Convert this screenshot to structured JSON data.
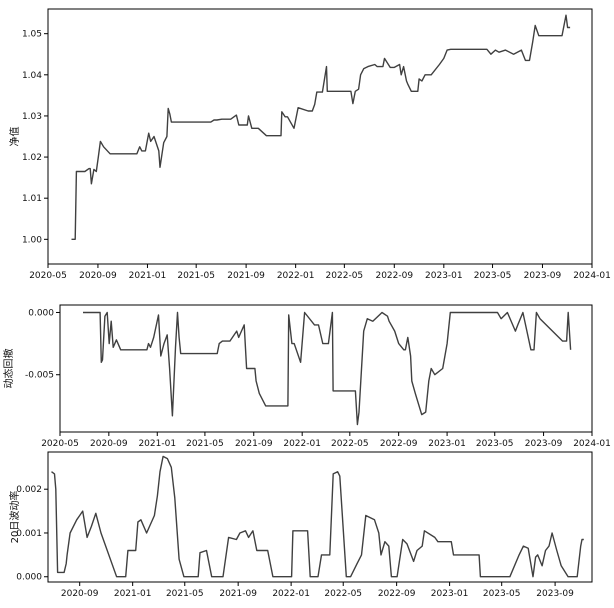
{
  "chart_data": [
    {
      "type": "line",
      "ylabel": "净值",
      "ylim": [
        0.994,
        1.056
      ],
      "yticks": [
        1.0,
        1.01,
        1.02,
        1.03,
        1.04,
        1.05
      ],
      "ytick_labels": [
        "1.00",
        "1.01",
        "1.02",
        "1.03",
        "1.04",
        "1.05"
      ],
      "xlim": [
        "2020-05-01",
        "2024-01-01"
      ],
      "xticks": [
        "2020-05-01",
        "2020-09-01",
        "2021-01-01",
        "2021-05-01",
        "2021-09-01",
        "2022-01-01",
        "2022-05-01",
        "2022-09-01",
        "2023-01-01",
        "2023-05-01",
        "2023-09-01",
        "2024-01-01"
      ],
      "xtick_labels": [
        "2020-05",
        "2020-09",
        "2021-01",
        "2021-05",
        "2021-09",
        "2022-01",
        "2022-05",
        "2022-09",
        "2023-01",
        "2023-05",
        "2023-09",
        "2024-01"
      ],
      "grid": false,
      "series": [
        {
          "color": "#404040",
          "x": [
            "2020-06-28",
            "2020-07-07",
            "2020-07-10",
            "2020-07-31",
            "2020-08-10",
            "2020-08-13",
            "2020-08-16",
            "2020-08-22",
            "2020-08-28",
            "2020-09-02",
            "2020-09-07",
            "2020-09-15",
            "2020-10-01",
            "2020-12-06",
            "2020-12-13",
            "2020-12-18",
            "2020-12-27",
            "2021-01-04",
            "2021-01-09",
            "2021-01-17",
            "2021-01-29",
            "2021-02-01",
            "2021-02-10",
            "2021-02-18",
            "2021-02-21",
            "2021-02-25",
            "2021-03-01",
            "2021-06-06",
            "2021-06-14",
            "2021-06-21",
            "2021-07-03",
            "2021-07-25",
            "2021-08-08",
            "2021-08-14",
            "2021-08-17",
            "2021-09-04",
            "2021-09-07",
            "2021-09-15",
            "2021-09-22",
            "2021-10-01",
            "2021-10-21",
            "2021-11-05",
            "2021-11-26",
            "2021-11-28",
            "2021-12-06",
            "2021-12-12",
            "2021-12-28",
            "2022-01-07",
            "2022-02-01",
            "2022-02-11",
            "2022-02-17",
            "2022-02-22",
            "2022-03-08",
            "2022-03-18",
            "2022-03-20",
            "2022-03-22",
            "2022-04-05",
            "2022-05-17",
            "2022-05-22",
            "2022-05-28",
            "2022-06-05",
            "2022-06-10",
            "2022-06-18",
            "2022-06-28",
            "2022-07-15",
            "2022-07-21",
            "2022-08-04",
            "2022-08-08",
            "2022-08-22",
            "2022-09-01",
            "2022-09-14",
            "2022-09-18",
            "2022-09-24",
            "2022-10-01",
            "2022-10-04",
            "2022-10-13",
            "2022-10-29",
            "2022-11-01",
            "2022-11-08",
            "2022-11-16",
            "2022-11-22",
            "2022-12-01",
            "2022-12-21",
            "2023-01-01",
            "2023-01-09",
            "2023-01-18",
            "2023-04-17",
            "2023-04-27",
            "2023-05-08",
            "2023-05-17",
            "2023-06-02",
            "2023-06-22",
            "2023-07-11",
            "2023-07-21",
            "2023-07-31",
            "2023-08-08",
            "2023-08-14",
            "2023-08-23",
            "2023-10-19",
            "2023-10-29",
            "2023-11-02",
            "2023-11-08"
          ],
          "y": [
            1.0,
            1.0,
            1.0165,
            1.0165,
            1.0172,
            1.0172,
            1.0135,
            1.017,
            1.0165,
            1.02,
            1.0238,
            1.0225,
            1.0208,
            1.0208,
            1.0225,
            1.0215,
            1.0215,
            1.0258,
            1.0238,
            1.025,
            1.0215,
            1.0175,
            1.0235,
            1.025,
            1.0318,
            1.0305,
            1.0285,
            1.0285,
            1.029,
            1.029,
            1.0292,
            1.0292,
            1.0302,
            1.0278,
            1.0278,
            1.0278,
            1.03,
            1.027,
            1.027,
            1.027,
            1.0252,
            1.0252,
            1.0252,
            1.031,
            1.0298,
            1.0298,
            1.027,
            1.032,
            1.0312,
            1.0312,
            1.0328,
            1.0358,
            1.0358,
            1.042,
            1.036,
            1.036,
            1.036,
            1.036,
            1.033,
            1.036,
            1.0365,
            1.04,
            1.0415,
            1.042,
            1.0425,
            1.042,
            1.042,
            1.044,
            1.0418,
            1.0418,
            1.0425,
            1.04,
            1.042,
            1.0385,
            1.0378,
            1.036,
            1.036,
            1.039,
            1.0385,
            1.04,
            1.04,
            1.04,
            1.0425,
            1.044,
            1.046,
            1.0462,
            1.0462,
            1.045,
            1.046,
            1.0455,
            1.046,
            1.045,
            1.046,
            1.0435,
            1.0435,
            1.048,
            1.052,
            1.0495,
            1.0495,
            1.0545,
            1.0515,
            1.0515
          ]
        }
      ]
    },
    {
      "type": "line",
      "ylabel": "动态回撤",
      "ylim": [
        -0.0096,
        0.0006
      ],
      "yticks": [
        0.0,
        -0.005
      ],
      "ytick_labels": [
        "0.000",
        "-0.005"
      ],
      "xlim": [
        "2020-05-01",
        "2024-01-01"
      ],
      "xticks": [
        "2020-05-01",
        "2020-09-01",
        "2021-01-01",
        "2021-05-01",
        "2021-09-01",
        "2022-01-01",
        "2022-05-01",
        "2022-09-01",
        "2023-01-01",
        "2023-05-01",
        "2023-09-01",
        "2024-01-01"
      ],
      "xtick_labels": [
        "2020-05",
        "2020-09",
        "2021-01",
        "2021-05",
        "2021-09",
        "2022-01",
        "2022-05",
        "2022-09",
        "2023-01",
        "2023-05",
        "2023-09",
        "2024-01"
      ],
      "grid": false,
      "series": [
        {
          "color": "#404040",
          "x": [
            "2020-06-28",
            "2020-08-10",
            "2020-08-13",
            "2020-08-16",
            "2020-08-22",
            "2020-08-28",
            "2020-09-02",
            "2020-09-07",
            "2020-09-12",
            "2020-09-20",
            "2020-10-01",
            "2020-12-06",
            "2020-12-10",
            "2020-12-15",
            "2020-12-23",
            "2021-01-04",
            "2021-01-10",
            "2021-01-18",
            "2021-01-26",
            "2021-02-01",
            "2021-02-08",
            "2021-02-16",
            "2021-02-21",
            "2021-02-25",
            "2021-03-01",
            "2021-06-01",
            "2021-06-06",
            "2021-06-14",
            "2021-07-03",
            "2021-07-20",
            "2021-07-25",
            "2021-08-08",
            "2021-08-14",
            "2021-08-17",
            "2021-09-04",
            "2021-09-07",
            "2021-09-15",
            "2021-10-01",
            "2021-10-21",
            "2021-11-05",
            "2021-11-26",
            "2021-11-28",
            "2021-12-06",
            "2021-12-12",
            "2021-12-28",
            "2022-01-07",
            "2022-02-01",
            "2022-02-11",
            "2022-02-22",
            "2022-03-08",
            "2022-03-18",
            "2022-03-20",
            "2022-04-05",
            "2022-05-15",
            "2022-05-20",
            "2022-05-24",
            "2022-06-05",
            "2022-06-14",
            "2022-06-28",
            "2022-07-21",
            "2022-08-04",
            "2022-08-08",
            "2022-08-22",
            "2022-09-01",
            "2022-09-14",
            "2022-09-18",
            "2022-09-24",
            "2022-10-01",
            "2022-10-04",
            "2022-10-13",
            "2022-10-29",
            "2022-11-08",
            "2022-11-16",
            "2022-11-22",
            "2022-12-01",
            "2022-12-21",
            "2023-01-01",
            "2023-01-09",
            "2023-05-08",
            "2023-05-17",
            "2023-06-02",
            "2023-06-22",
            "2023-06-28",
            "2023-07-11",
            "2023-07-21",
            "2023-07-31",
            "2023-08-08",
            "2023-08-14",
            "2023-08-23",
            "2023-10-19",
            "2023-10-29",
            "2023-11-02",
            "2023-11-08"
          ],
          "y": [
            0.0,
            0.0,
            -0.004,
            -0.0038,
            -0.0003,
            0.0,
            -0.0025,
            -0.0007,
            -0.0028,
            -0.0022,
            -0.003,
            -0.003,
            -0.0025,
            -0.0028,
            -0.002,
            -0.0002,
            -0.0035,
            -0.0025,
            -0.0018,
            -0.0045,
            -0.0083,
            -0.0028,
            0.0,
            -0.002,
            -0.0033,
            -0.0033,
            -0.0025,
            -0.0023,
            -0.0023,
            -0.0015,
            -0.002,
            -0.001,
            -0.0045,
            -0.0045,
            -0.0045,
            -0.0055,
            -0.0065,
            -0.0075,
            -0.0075,
            -0.0075,
            -0.0075,
            -0.0002,
            -0.0025,
            -0.0025,
            -0.004,
            0.0,
            -0.001,
            -0.001,
            -0.0025,
            -0.0025,
            0.0,
            -0.0063,
            -0.0063,
            -0.0063,
            -0.009,
            -0.008,
            -0.0015,
            -0.0005,
            -0.0007,
            0.0,
            -0.0003,
            -0.0007,
            -0.0015,
            -0.0025,
            -0.003,
            -0.003,
            -0.002,
            -0.0035,
            -0.0055,
            -0.0065,
            -0.0082,
            -0.008,
            -0.0055,
            -0.0045,
            -0.005,
            -0.0045,
            -0.0025,
            0.0,
            0.0,
            -0.0005,
            0.0,
            -0.0015,
            -0.001,
            0.0,
            -0.0015,
            -0.003,
            -0.003,
            0.0,
            -0.0005,
            -0.0023,
            -0.0023,
            0.0,
            -0.003
          ]
        }
      ]
    },
    {
      "type": "line",
      "ylabel": "20日波动率",
      "ylim": [
        -0.00012,
        0.00285
      ],
      "yticks": [
        0.0,
        0.001,
        0.002
      ],
      "ytick_labels": [
        "0.000",
        "0.001",
        "0.002"
      ],
      "xlim": [
        "2020-06-20",
        "2023-11-25"
      ],
      "xticks": [
        "2020-09-01",
        "2021-01-01",
        "2021-05-01",
        "2021-09-01",
        "2022-01-01",
        "2022-05-01",
        "2022-09-01",
        "2023-01-01",
        "2023-05-01",
        "2023-09-01"
      ],
      "xtick_labels": [
        "2020-09",
        "2021-01",
        "2021-05",
        "2021-09",
        "2022-01",
        "2022-05",
        "2022-09",
        "2023-01",
        "2023-05",
        "2023-09"
      ],
      "grid": false,
      "series": [
        {
          "color": "#404040",
          "x": [
            "2020-06-28",
            "2020-07-05",
            "2020-07-08",
            "2020-07-12",
            "2020-07-27",
            "2020-08-01",
            "2020-08-03",
            "2020-08-10",
            "2020-08-25",
            "2020-09-01",
            "2020-09-08",
            "2020-09-18",
            "2020-09-28",
            "2020-10-08",
            "2020-10-20",
            "2020-11-25",
            "2020-12-01",
            "2020-12-16",
            "2020-12-21",
            "2021-01-08",
            "2021-01-13",
            "2021-01-20",
            "2021-02-02",
            "2021-02-20",
            "2021-02-27",
            "2021-03-05",
            "2021-03-12",
            "2021-03-22",
            "2021-03-31",
            "2021-04-08",
            "2021-04-18",
            "2021-04-29",
            "2021-05-10",
            "2021-06-01",
            "2021-06-05",
            "2021-06-20",
            "2021-07-02",
            "2021-07-28",
            "2021-08-10",
            "2021-08-28",
            "2021-09-05",
            "2021-09-18",
            "2021-09-25",
            "2021-10-05",
            "2021-10-14",
            "2021-11-08",
            "2021-11-20",
            "2021-12-05",
            "2021-12-25",
            "2022-01-02",
            "2022-01-05",
            "2022-02-08",
            "2022-02-14",
            "2022-03-04",
            "2022-03-12",
            "2022-03-31",
            "2022-04-08",
            "2022-04-18",
            "2022-04-23",
            "2022-05-08",
            "2022-05-18",
            "2022-06-02",
            "2022-06-12",
            "2022-06-22",
            "2022-07-12",
            "2022-07-22",
            "2022-07-27",
            "2022-08-05",
            "2022-08-14",
            "2022-08-20",
            "2022-08-28",
            "2022-09-02",
            "2022-09-15",
            "2022-09-25",
            "2022-10-10",
            "2022-10-18",
            "2022-10-30",
            "2022-11-04",
            "2022-11-28",
            "2022-12-05",
            "2023-01-05",
            "2023-01-10",
            "2023-03-10",
            "2023-03-13",
            "2023-03-31",
            "2023-04-05",
            "2023-04-10",
            "2023-04-30",
            "2023-05-20",
            "2023-06-10",
            "2023-06-20",
            "2023-07-01",
            "2023-07-12",
            "2023-07-18",
            "2023-07-23",
            "2023-08-02",
            "2023-08-10",
            "2023-08-18",
            "2023-08-25",
            "2023-09-05",
            "2023-09-15",
            "2023-10-01",
            "2023-10-10",
            "2023-10-22",
            "2023-10-30",
            "2023-11-02",
            "2023-11-06"
          ],
          "y": [
            0.0024,
            0.00235,
            0.002,
            0.0001,
            0.0001,
            0.0003,
            0.0005,
            0.001,
            0.0013,
            0.0014,
            0.0015,
            0.0009,
            0.00115,
            0.00145,
            0.001,
            0.0,
            0.0,
            0.0,
            0.0006,
            0.0006,
            0.00125,
            0.0013,
            0.001,
            0.0014,
            0.00185,
            0.0024,
            0.00275,
            0.0027,
            0.0025,
            0.0018,
            0.0004,
            0.0,
            0.0,
            0.0,
            0.00055,
            0.0006,
            0.0,
            0.0,
            0.0009,
            0.00085,
            0.001,
            0.00105,
            0.0009,
            0.00105,
            0.0006,
            0.0006,
            0.0,
            0.0,
            0.0,
            0.0,
            0.00105,
            0.00105,
            0.0,
            0.0,
            0.0005,
            0.0005,
            0.00235,
            0.0024,
            0.0023,
            0.0,
            0.0,
            0.0003,
            0.0005,
            0.0014,
            0.0013,
            0.001,
            0.0005,
            0.0008,
            0.0007,
            0.0,
            0.0,
            0.0,
            0.00085,
            0.00075,
            0.00035,
            0.0006,
            0.0007,
            0.00105,
            0.0009,
            0.0008,
            0.0008,
            0.0005,
            0.0005,
            0.0,
            0.0,
            0.0,
            0.0,
            0.0,
            0.0,
            0.0005,
            0.0007,
            0.00065,
            0.0,
            0.00045,
            0.0005,
            0.00025,
            0.0006,
            0.0007,
            0.001,
            0.0006,
            0.00025,
            0.0,
            0.0,
            0.0,
            0.0007,
            0.00085,
            0.00085
          ]
        }
      ]
    }
  ]
}
